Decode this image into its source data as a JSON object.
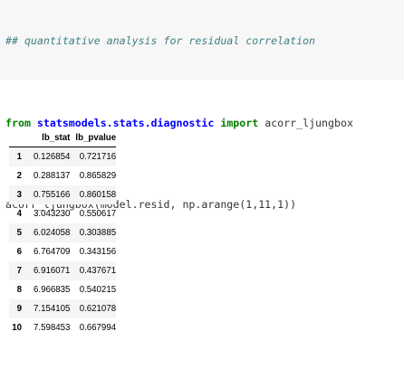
{
  "code": {
    "comment": "## quantitative analysis for residual correlation",
    "import_from": "from",
    "import_module": "statsmodels.stats.diagnostic",
    "import_kw": "import",
    "import_name": "acorr_ljungbox",
    "call": "acorr_ljungbox(model.resid, np.arange(1,11,1))"
  },
  "table": {
    "columns": [
      "lb_stat",
      "lb_pvalue"
    ],
    "rows": [
      {
        "index": "1",
        "lb_stat": "0.126854",
        "lb_pvalue": "0.721716"
      },
      {
        "index": "2",
        "lb_stat": "0.288137",
        "lb_pvalue": "0.865829"
      },
      {
        "index": "3",
        "lb_stat": "0.755166",
        "lb_pvalue": "0.860158"
      },
      {
        "index": "4",
        "lb_stat": "3.043230",
        "lb_pvalue": "0.550617"
      },
      {
        "index": "5",
        "lb_stat": "6.024058",
        "lb_pvalue": "0.303885"
      },
      {
        "index": "6",
        "lb_stat": "6.764709",
        "lb_pvalue": "0.343156"
      },
      {
        "index": "7",
        "lb_stat": "6.916071",
        "lb_pvalue": "0.437671"
      },
      {
        "index": "8",
        "lb_stat": "6.966835",
        "lb_pvalue": "0.540215"
      },
      {
        "index": "9",
        "lb_stat": "7.154105",
        "lb_pvalue": "0.621078"
      },
      {
        "index": "10",
        "lb_stat": "7.598453",
        "lb_pvalue": "0.667994"
      }
    ]
  },
  "colors": {
    "comment": "#408080",
    "keyword": "#008000",
    "namespace": "#0000ff",
    "cell_background": "#f7f7f7",
    "striped_row": "#f5f5f5"
  }
}
